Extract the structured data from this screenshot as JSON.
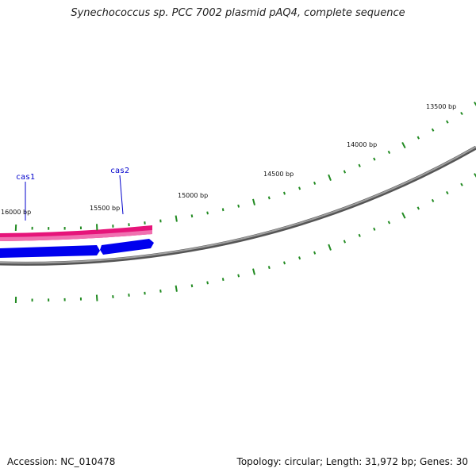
{
  "title": "Synechococcus sp. PCC 7002 plasmid pAQ4, complete sequence",
  "footer": {
    "accession": "Accession: NC_010478",
    "summary": "Topology: circular; Length: 31,972 bp; Genes: 30"
  },
  "map": {
    "topology": "circular",
    "length_bp": 31972,
    "backbone_color": "#808080",
    "tick_color": "#228b22",
    "tick_labels": [
      "13500 bp",
      "14000 bp",
      "14500 bp",
      "15000 bp",
      "15500 bp",
      "16000 bp"
    ],
    "genes": [
      {
        "name": "cas1",
        "strand": "forward",
        "color": "#e6147a"
      },
      {
        "name": "cas2",
        "strand": "forward",
        "color": "#e6147a"
      },
      {
        "name": "",
        "strand": "reverse",
        "color": "#0000ee"
      },
      {
        "name": "",
        "strand": "reverse",
        "color": "#0000ee"
      }
    ]
  }
}
